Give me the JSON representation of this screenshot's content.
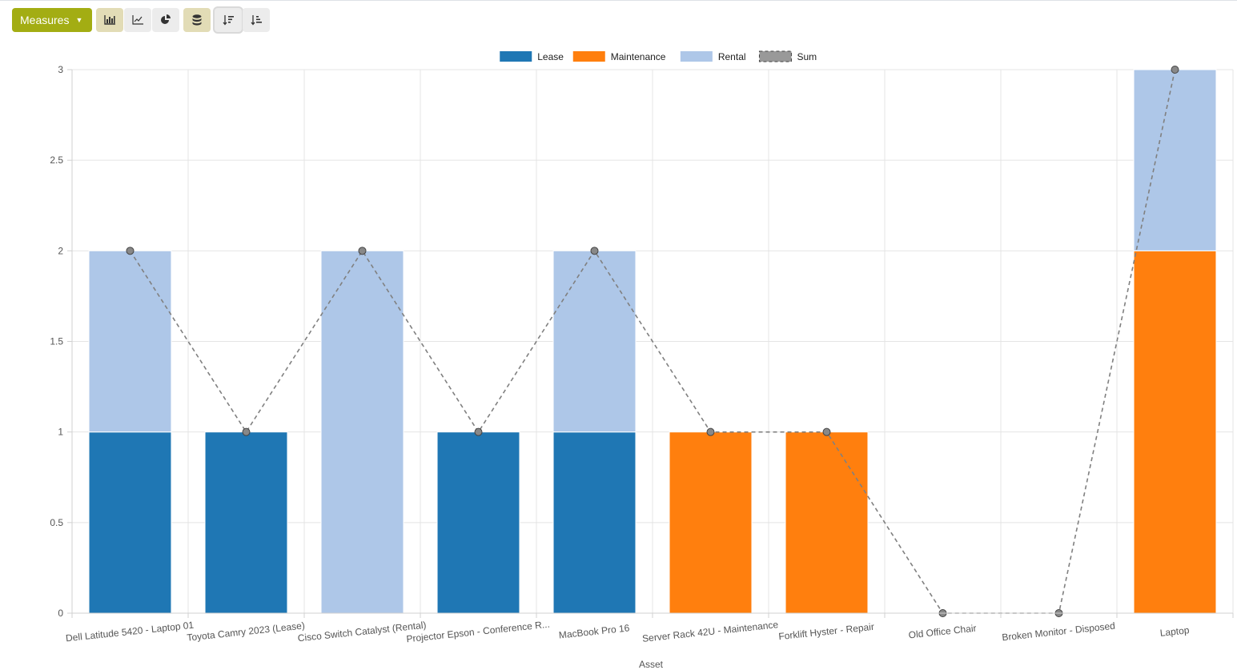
{
  "toolbar": {
    "measures_label": "Measures",
    "buttons": [
      "bar-chart-icon",
      "line-chart-icon",
      "pie-chart-icon",
      "stacked-icon",
      "sort-descending-icon",
      "sort-ascending-icon"
    ],
    "active": [
      "bar-chart-icon",
      "stacked-icon"
    ]
  },
  "colors": {
    "accent": "#a3ad13",
    "Lease": "#1f77b4",
    "Maintenance": "#ff7f0e",
    "Rental": "#aec7e8",
    "Sum": "#808080"
  },
  "chart_data": {
    "type": "bar",
    "stacked": true,
    "categories": [
      "Dell Latitude 5420 - Laptop 01",
      "Toyota Camry 2023 (Lease)",
      "Cisco Switch Catalyst (Rental)",
      "Projector Epson - Conference R...",
      "MacBook Pro 16",
      "Server Rack 42U - Maintenance",
      "Forklift Hyster - Repair",
      "Old Office Chair",
      "Broken Monitor - Disposed",
      "Laptop"
    ],
    "series": [
      {
        "name": "Lease",
        "values": [
          1,
          1,
          0,
          1,
          1,
          0,
          0,
          0,
          0,
          0
        ]
      },
      {
        "name": "Maintenance",
        "values": [
          0,
          0,
          0,
          0,
          0,
          1,
          1,
          0,
          0,
          2
        ]
      },
      {
        "name": "Rental",
        "values": [
          1,
          0,
          2,
          0,
          1,
          0,
          0,
          0,
          0,
          1
        ]
      },
      {
        "name": "Sum",
        "type": "line",
        "values": [
          2,
          1,
          2,
          1,
          2,
          1,
          1,
          0,
          0,
          3
        ]
      }
    ],
    "xlabel": "Asset",
    "ylabel": "",
    "ylim": [
      0,
      3
    ],
    "yticks": [
      "0",
      "0.5",
      "1",
      "1.5",
      "2",
      "2.5",
      "3"
    ],
    "legend": [
      "Lease",
      "Maintenance",
      "Rental",
      "Sum"
    ],
    "legend_position": "top",
    "grid": true
  }
}
